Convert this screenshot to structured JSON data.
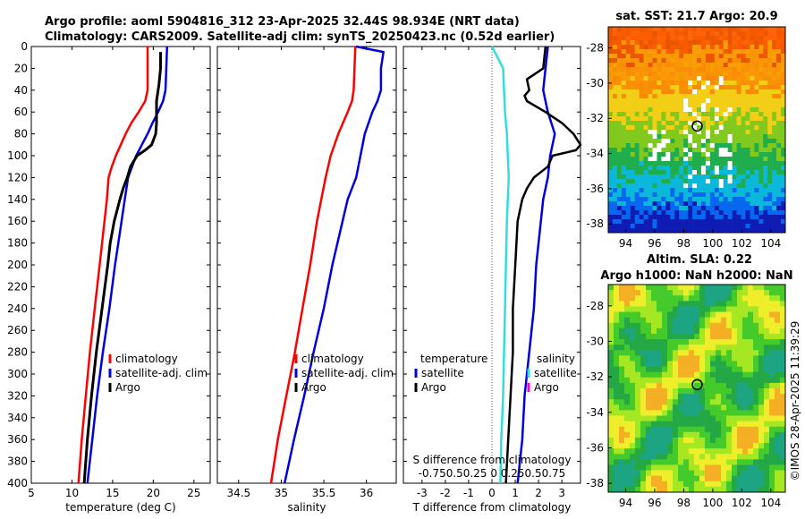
{
  "figure": {
    "title_line1": "Argo profile: aoml 5904816_312 23-Apr-2025 32.44S 98.934E (NRT data)",
    "title_line2": "Climatology: CARS2009. Satellite-adj clim: synTS_20250423.nc (0.52d earlier)",
    "watermark": "©IMOS 28-Apr-2025 11:39:29",
    "colors": {
      "climatology": "#ff0000",
      "satellite": "#0000dd",
      "argo": "#000000",
      "sat_salinity": "#33dddd",
      "argo_salinity": "#ff00cc"
    }
  },
  "chart_data": [
    {
      "id": "temperature",
      "type": "line",
      "xlabel": "temperature (deg C)",
      "ylabel": "",
      "xlim": [
        5,
        27
      ],
      "ylim": [
        400,
        0
      ],
      "xticks": [
        "5",
        "10",
        "15",
        "20",
        "25"
      ],
      "xtick_values": [
        5,
        10,
        15,
        20,
        25
      ],
      "yticks": [
        "0",
        "20",
        "40",
        "60",
        "80",
        "100",
        "120",
        "140",
        "160",
        "180",
        "200",
        "220",
        "240",
        "260",
        "280",
        "300",
        "320",
        "340",
        "360",
        "380",
        "400"
      ],
      "ytick_values": [
        0,
        20,
        40,
        60,
        80,
        100,
        120,
        140,
        160,
        180,
        200,
        220,
        240,
        260,
        280,
        300,
        320,
        340,
        360,
        380,
        400
      ],
      "legend": [
        "climatology",
        "satellite-adj. clim",
        "Argo"
      ],
      "series": [
        {
          "name": "climatology",
          "depth": [
            0,
            20,
            40,
            50,
            60,
            70,
            80,
            90,
            100,
            110,
            120,
            140,
            160,
            180,
            200,
            240,
            280,
            320,
            360,
            400
          ],
          "values": [
            19.3,
            19.3,
            19.3,
            19.0,
            18.2,
            17.3,
            16.6,
            16.0,
            15.4,
            14.9,
            14.5,
            14.3,
            14.0,
            13.7,
            13.4,
            12.8,
            12.2,
            11.7,
            11.2,
            10.8
          ]
        },
        {
          "name": "satellite-adj. clim",
          "depth": [
            0,
            20,
            40,
            50,
            60,
            70,
            80,
            90,
            100,
            110,
            120,
            140,
            160,
            180,
            200,
            240,
            280,
            320,
            360,
            400
          ],
          "values": [
            21.7,
            21.6,
            21.5,
            21.2,
            20.6,
            19.9,
            19.3,
            18.6,
            17.9,
            17.4,
            16.9,
            16.5,
            16.1,
            15.7,
            15.3,
            14.6,
            13.8,
            13.1,
            12.5,
            11.9
          ]
        },
        {
          "name": "Argo",
          "depth": [
            5,
            20,
            35,
            45,
            50,
            60,
            70,
            80,
            90,
            95,
            100,
            110,
            120,
            130,
            140,
            160,
            180,
            200,
            240,
            280,
            320,
            360,
            400
          ],
          "values": [
            20.9,
            20.9,
            20.7,
            20.5,
            20.4,
            20.4,
            20.4,
            20.3,
            19.8,
            19.0,
            18.0,
            17.2,
            16.8,
            16.3,
            15.9,
            15.2,
            14.7,
            14.4,
            13.7,
            13.0,
            12.4,
            11.9,
            11.5
          ]
        }
      ]
    },
    {
      "id": "salinity",
      "type": "line",
      "xlabel": "salinity",
      "ylabel": "",
      "xlim": [
        34.25,
        36.35
      ],
      "ylim": [
        400,
        0
      ],
      "xticks": [
        "34.5",
        "35",
        "35.5",
        "36"
      ],
      "xtick_values": [
        34.5,
        35,
        35.5,
        36
      ],
      "legend": [
        "climatology",
        "satellite-adj. clim",
        "Argo"
      ],
      "series": [
        {
          "name": "climatology",
          "depth": [
            0,
            20,
            40,
            50,
            60,
            80,
            100,
            120,
            140,
            160,
            200,
            240,
            280,
            320,
            360,
            400
          ],
          "values": [
            35.87,
            35.86,
            35.85,
            35.83,
            35.78,
            35.67,
            35.58,
            35.52,
            35.47,
            35.42,
            35.34,
            35.25,
            35.16,
            35.06,
            34.96,
            34.88
          ]
        },
        {
          "name": "satellite-adj. clim",
          "depth": [
            0,
            5,
            20,
            40,
            50,
            60,
            80,
            100,
            120,
            140,
            160,
            200,
            240,
            280,
            320,
            360,
            400
          ],
          "values": [
            35.88,
            36.2,
            36.17,
            36.17,
            36.13,
            36.07,
            35.98,
            35.93,
            35.88,
            35.78,
            35.72,
            35.6,
            35.5,
            35.38,
            35.27,
            35.15,
            35.04
          ]
        }
      ]
    },
    {
      "id": "difference",
      "type": "line",
      "xlabel": "T difference from climatology",
      "xlabel_top": "S difference from climatology",
      "xlim": [
        -3.8,
        3.8
      ],
      "ylim": [
        400,
        0
      ],
      "xticks": [
        "-3",
        "-2",
        "-1",
        "0",
        "1",
        "2",
        "3"
      ],
      "xtick_values": [
        -3,
        -2,
        -1,
        0,
        1,
        2,
        3
      ],
      "s_ticks": [
        "-0.75",
        "0.5",
        "0.25",
        "0",
        "0.25",
        "0.5",
        "0.75"
      ],
      "legend_temperature_title": "temperature",
      "legend_salinity_title": "salinity",
      "legend_temperature": [
        "satellite",
        "Argo"
      ],
      "legend_salinity": [
        "satellite",
        "Argo"
      ],
      "series": [
        {
          "name": "T satellite",
          "depth": [
            0,
            20,
            40,
            60,
            80,
            100,
            120,
            140,
            160,
            200,
            240,
            280,
            320,
            360,
            400
          ],
          "values": [
            2.4,
            2.3,
            2.2,
            2.4,
            2.7,
            2.5,
            2.4,
            2.2,
            2.1,
            1.9,
            1.8,
            1.6,
            1.4,
            1.3,
            1.1
          ]
        },
        {
          "name": "T Argo",
          "depth": [
            0,
            20,
            30,
            40,
            45,
            50,
            60,
            70,
            80,
            90,
            95,
            100,
            110,
            120,
            130,
            140,
            150,
            160,
            200,
            240,
            280,
            320,
            360,
            400
          ],
          "values": [
            2.3,
            2.2,
            1.5,
            1.6,
            1.4,
            1.5,
            2.3,
            3.0,
            3.5,
            3.8,
            3.6,
            2.6,
            2.4,
            1.8,
            1.5,
            1.3,
            1.2,
            1.1,
            1.0,
            0.9,
            0.9,
            0.8,
            0.7,
            0.6
          ]
        },
        {
          "name": "S satellite",
          "depth": [
            0,
            20,
            40,
            60,
            80,
            100,
            120,
            140,
            160,
            200,
            240,
            280,
            320,
            360,
            400
          ],
          "values": [
            0.0,
            0.12,
            0.13,
            0.14,
            0.16,
            0.17,
            0.18,
            0.17,
            0.16,
            0.15,
            0.14,
            0.13,
            0.12,
            0.1,
            0.09
          ]
        }
      ]
    },
    {
      "id": "sst_map",
      "type": "heatmap",
      "title": "sat. SST: 21.7 Argo: 20.9",
      "xticks": [
        "94",
        "96",
        "98",
        "100",
        "102",
        "104"
      ],
      "xtick_values": [
        94,
        96,
        98,
        100,
        102,
        104
      ],
      "yticks": [
        "-28",
        "-30",
        "-32",
        "-34",
        "-36",
        "-38"
      ],
      "ytick_values": [
        -28,
        -30,
        -32,
        -34,
        -36,
        -38
      ],
      "xlim": [
        92.8,
        105.0
      ],
      "ylim": [
        -38.5,
        -26.8
      ],
      "argo_position": {
        "lon": 98.93,
        "lat": -32.44
      }
    },
    {
      "id": "sla_map",
      "type": "heatmap",
      "title_line1": "Altim. SLA: 0.22",
      "title_line2": "Argo h1000: NaN h2000: NaN",
      "xticks": [
        "94",
        "96",
        "98",
        "100",
        "102",
        "104"
      ],
      "xtick_values": [
        94,
        96,
        98,
        100,
        102,
        104
      ],
      "yticks": [
        "-28",
        "-30",
        "-32",
        "-34",
        "-36",
        "-38"
      ],
      "ytick_values": [
        -28,
        -30,
        -32,
        -34,
        -36,
        -38
      ],
      "xlim": [
        92.8,
        105.0
      ],
      "ylim": [
        -38.5,
        -26.8
      ],
      "argo_position": {
        "lon": 98.93,
        "lat": -32.44
      }
    }
  ]
}
